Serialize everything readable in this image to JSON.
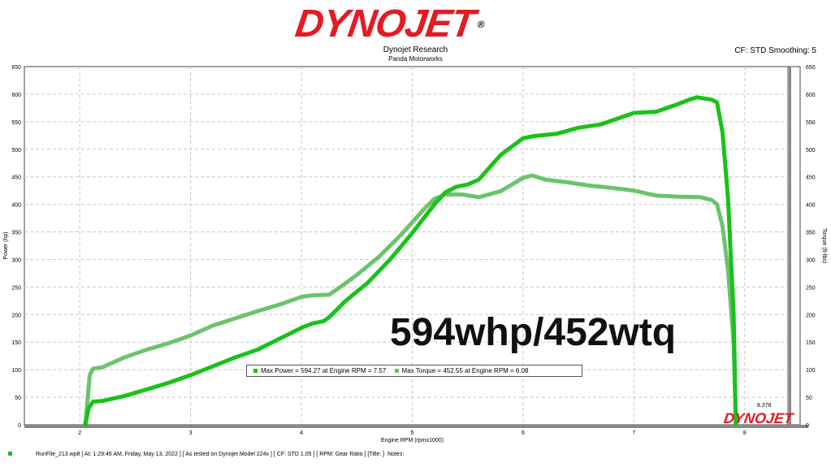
{
  "header": {
    "logo_text": "DYNOJET",
    "logo_reg": "®",
    "company": "Dynojet Research",
    "subcompany": "Panda Motorworks",
    "cf_info": "CF: STD Smoothing: 5"
  },
  "overlay_text": "594whp/452wtq",
  "legend": {
    "power_label": "Max Power = 594.27 at Engine RPM = 7.57",
    "torque_label": "Max Torque = 452.55 at Engine RPM = 6.08"
  },
  "end_marker": "8.378",
  "mini_logo": "DYNOJET",
  "footer": "RunFile_213.wp8 [ At: 1:29:46 AM, Friday, May 13, 2022 ] [ As tested on Dynojet Model 224x ] [ CF: STD 1.05 ] [ RPM: Gear Ratio ] [Title: ]  Notes:",
  "colors": {
    "power": "#19c219",
    "torque": "#6cc36c",
    "logo": "#e31b23",
    "grid": "#c8c8c8"
  },
  "chart_data": {
    "type": "line",
    "xlabel": "Engine RPM (rpmx1000)",
    "ylabel": "Power (hp)",
    "y2label": "Torque (ft-lbs)",
    "xlim": [
      1.5,
      8.5
    ],
    "ylim": [
      0,
      650
    ],
    "y2lim": [
      0,
      650
    ],
    "x_ticks": [
      "2",
      "3",
      "4",
      "5",
      "6",
      "7",
      "8"
    ],
    "y_ticks": [
      "0",
      "50",
      "100",
      "150",
      "200",
      "250",
      "300",
      "350",
      "400",
      "450",
      "500",
      "550",
      "600",
      "650"
    ],
    "grid": true,
    "series": [
      {
        "name": "Max Power",
        "points": [
          [
            2.05,
            0
          ],
          [
            2.08,
            30
          ],
          [
            2.12,
            42
          ],
          [
            2.2,
            43
          ],
          [
            2.4,
            52
          ],
          [
            2.6,
            64
          ],
          [
            2.8,
            76
          ],
          [
            3.0,
            90
          ],
          [
            3.2,
            106
          ],
          [
            3.4,
            122
          ],
          [
            3.6,
            136
          ],
          [
            3.8,
            156
          ],
          [
            4.0,
            176
          ],
          [
            4.1,
            184
          ],
          [
            4.2,
            188
          ],
          [
            4.25,
            195
          ],
          [
            4.4,
            225
          ],
          [
            4.6,
            258
          ],
          [
            4.8,
            300
          ],
          [
            5.0,
            348
          ],
          [
            5.2,
            400
          ],
          [
            5.3,
            422
          ],
          [
            5.4,
            432
          ],
          [
            5.5,
            436
          ],
          [
            5.6,
            445
          ],
          [
            5.8,
            490
          ],
          [
            6.0,
            520
          ],
          [
            6.1,
            524
          ],
          [
            6.3,
            528
          ],
          [
            6.5,
            539
          ],
          [
            6.7,
            545
          ],
          [
            6.8,
            552
          ],
          [
            7.0,
            566
          ],
          [
            7.2,
            568
          ],
          [
            7.4,
            582
          ],
          [
            7.5,
            590
          ],
          [
            7.57,
            594.27
          ],
          [
            7.7,
            590
          ],
          [
            7.75,
            585
          ],
          [
            7.8,
            530
          ],
          [
            7.85,
            410
          ],
          [
            7.9,
            200
          ],
          [
            7.92,
            0
          ]
        ]
      },
      {
        "name": "Max Torque",
        "points": [
          [
            2.05,
            0
          ],
          [
            2.09,
            90
          ],
          [
            2.12,
            102
          ],
          [
            2.2,
            104
          ],
          [
            2.4,
            122
          ],
          [
            2.6,
            136
          ],
          [
            2.8,
            148
          ],
          [
            3.0,
            162
          ],
          [
            3.2,
            180
          ],
          [
            3.4,
            193
          ],
          [
            3.6,
            206
          ],
          [
            3.8,
            218
          ],
          [
            4.0,
            232
          ],
          [
            4.1,
            235
          ],
          [
            4.25,
            236
          ],
          [
            4.35,
            250
          ],
          [
            4.5,
            272
          ],
          [
            4.7,
            305
          ],
          [
            4.9,
            345
          ],
          [
            5.1,
            390
          ],
          [
            5.2,
            410
          ],
          [
            5.3,
            418
          ],
          [
            5.45,
            418
          ],
          [
            5.6,
            413
          ],
          [
            5.8,
            424
          ],
          [
            6.0,
            448
          ],
          [
            6.08,
            452.55
          ],
          [
            6.2,
            445
          ],
          [
            6.4,
            440
          ],
          [
            6.6,
            434
          ],
          [
            6.8,
            430
          ],
          [
            7.0,
            425
          ],
          [
            7.2,
            416
          ],
          [
            7.4,
            414
          ],
          [
            7.6,
            413
          ],
          [
            7.7,
            408
          ],
          [
            7.75,
            400
          ],
          [
            7.8,
            360
          ],
          [
            7.85,
            280
          ],
          [
            7.9,
            150
          ],
          [
            7.92,
            0
          ]
        ]
      }
    ]
  }
}
